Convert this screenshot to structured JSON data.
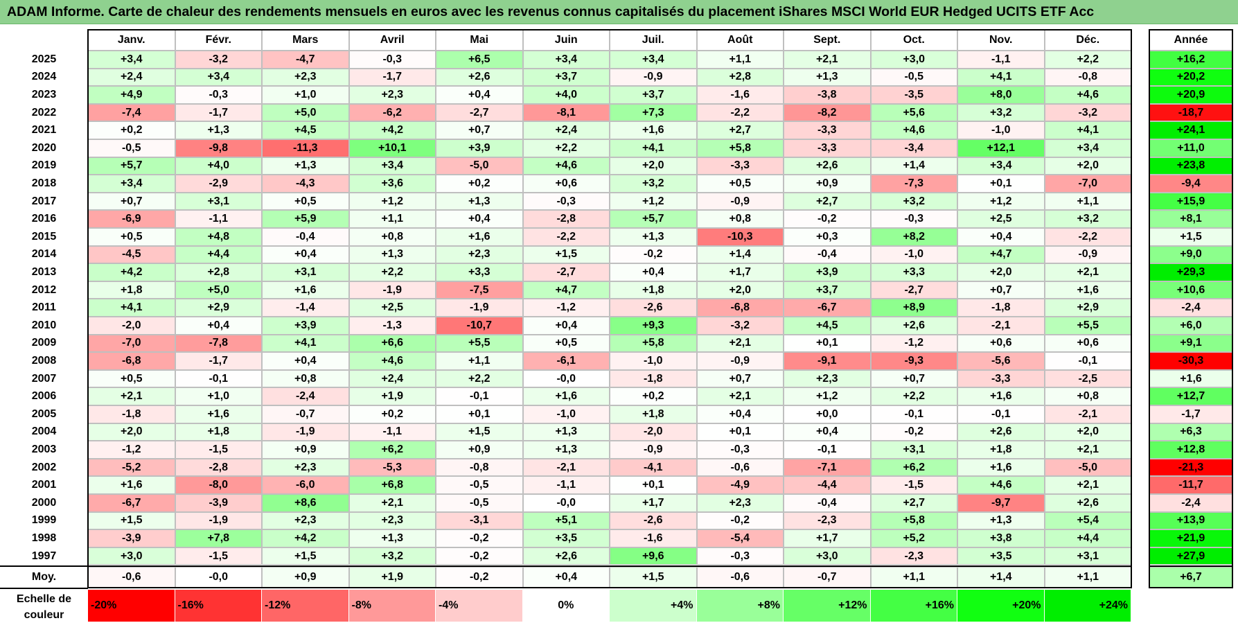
{
  "title": "ADAM Informe. Carte de chaleur des rendements mensuels en euros avec les revenus connus capitalisés du placement iShares MSCI World EUR Hedged UCITS ETF Acc",
  "chart_data": {
    "type": "heatmap",
    "columns": [
      "Janv.",
      "Févr.",
      "Mars",
      "Avril",
      "Mai",
      "Juin",
      "Juil.",
      "Août",
      "Sept.",
      "Oct.",
      "Nov.",
      "Déc."
    ],
    "year_column_label": "Année",
    "rows": [
      {
        "label": "2025",
        "values": [
          "+3,4",
          "-3,2",
          "-4,7",
          "-0,3",
          "+6,5",
          "+3,4",
          "+3,4",
          "+1,1",
          "+2,1",
          "+3,0",
          "-1,1",
          "+2,2"
        ],
        "annual": "+16,2"
      },
      {
        "label": "2024",
        "values": [
          "+2,4",
          "+3,4",
          "+2,3",
          "-1,7",
          "+2,6",
          "+3,7",
          "-0,9",
          "+2,8",
          "+1,3",
          "-0,5",
          "+4,1",
          "-0,8"
        ],
        "annual": "+20,2"
      },
      {
        "label": "2023",
        "values": [
          "+4,9",
          "-0,3",
          "+1,0",
          "+2,3",
          "+0,4",
          "+4,0",
          "+3,7",
          "-1,6",
          "-3,8",
          "-3,5",
          "+8,0",
          "+4,6"
        ],
        "annual": "+20,9"
      },
      {
        "label": "2022",
        "values": [
          "-7,4",
          "-1,7",
          "+5,0",
          "-6,2",
          "-2,7",
          "-8,1",
          "+7,3",
          "-2,2",
          "-8,2",
          "+5,6",
          "+3,2",
          "-3,2"
        ],
        "annual": "-18,7"
      },
      {
        "label": "2021",
        "values": [
          "+0,2",
          "+1,3",
          "+4,5",
          "+4,2",
          "+0,7",
          "+2,4",
          "+1,6",
          "+2,7",
          "-3,3",
          "+4,6",
          "-1,0",
          "+4,1"
        ],
        "annual": "+24,1"
      },
      {
        "label": "2020",
        "values": [
          "-0,5",
          "-9,8",
          "-11,3",
          "+10,1",
          "+3,9",
          "+2,2",
          "+4,1",
          "+5,8",
          "-3,3",
          "-3,4",
          "+12,1",
          "+3,4"
        ],
        "annual": "+11,0"
      },
      {
        "label": "2019",
        "values": [
          "+5,7",
          "+4,0",
          "+1,3",
          "+3,4",
          "-5,0",
          "+4,6",
          "+2,0",
          "-3,3",
          "+2,6",
          "+1,4",
          "+3,4",
          "+2,0"
        ],
        "annual": "+23,8"
      },
      {
        "label": "2018",
        "values": [
          "+3,4",
          "-2,9",
          "-4,3",
          "+3,6",
          "+0,2",
          "+0,6",
          "+3,2",
          "+0,5",
          "+0,9",
          "-7,3",
          "+0,1",
          "-7,0"
        ],
        "annual": "-9,4"
      },
      {
        "label": "2017",
        "values": [
          "+0,7",
          "+3,1",
          "+0,5",
          "+1,2",
          "+1,3",
          "-0,3",
          "+1,2",
          "-0,9",
          "+2,7",
          "+3,2",
          "+1,2",
          "+1,1"
        ],
        "annual": "+15,9"
      },
      {
        "label": "2016",
        "values": [
          "-6,9",
          "-1,1",
          "+5,9",
          "+1,1",
          "+0,4",
          "-2,8",
          "+5,7",
          "+0,8",
          "-0,2",
          "-0,3",
          "+2,5",
          "+3,2"
        ],
        "annual": "+8,1"
      },
      {
        "label": "2015",
        "values": [
          "+0,5",
          "+4,8",
          "-0,4",
          "+0,8",
          "+1,6",
          "-2,2",
          "+1,3",
          "-10,3",
          "+0,3",
          "+8,2",
          "+0,4",
          "-2,2"
        ],
        "annual": "+1,5"
      },
      {
        "label": "2014",
        "values": [
          "-4,5",
          "+4,4",
          "+0,4",
          "+1,3",
          "+2,3",
          "+1,5",
          "-0,2",
          "+1,4",
          "-0,4",
          "-1,0",
          "+4,7",
          "-0,9"
        ],
        "annual": "+9,0"
      },
      {
        "label": "2013",
        "values": [
          "+4,2",
          "+2,8",
          "+3,1",
          "+2,2",
          "+3,3",
          "-2,7",
          "+0,4",
          "+1,7",
          "+3,9",
          "+3,3",
          "+2,0",
          "+2,1"
        ],
        "annual": "+29,3"
      },
      {
        "label": "2012",
        "values": [
          "+1,8",
          "+5,0",
          "+1,6",
          "-1,9",
          "-7,5",
          "+4,7",
          "+1,8",
          "+2,0",
          "+3,7",
          "-2,7",
          "+0,7",
          "+1,6"
        ],
        "annual": "+10,6"
      },
      {
        "label": "2011",
        "values": [
          "+4,1",
          "+2,9",
          "-1,4",
          "+2,5",
          "-1,9",
          "-1,2",
          "-2,6",
          "-6,8",
          "-6,7",
          "+8,9",
          "-1,8",
          "+2,9"
        ],
        "annual": "-2,4"
      },
      {
        "label": "2010",
        "values": [
          "-2,0",
          "+0,4",
          "+3,9",
          "-1,3",
          "-10,7",
          "+0,4",
          "+9,3",
          "-3,2",
          "+4,5",
          "+2,6",
          "-2,1",
          "+5,5"
        ],
        "annual": "+6,0"
      },
      {
        "label": "2009",
        "values": [
          "-7,0",
          "-7,8",
          "+4,1",
          "+6,6",
          "+5,5",
          "+0,5",
          "+5,8",
          "+2,1",
          "+0,1",
          "-1,2",
          "+0,6",
          "+0,6"
        ],
        "annual": "+9,1"
      },
      {
        "label": "2008",
        "values": [
          "-6,8",
          "-1,7",
          "+0,4",
          "+4,6",
          "+1,1",
          "-6,1",
          "-1,0",
          "-0,9",
          "-9,1",
          "-9,3",
          "-5,6",
          "-0,1"
        ],
        "annual": "-30,3"
      },
      {
        "label": "2007",
        "values": [
          "+0,5",
          "-0,1",
          "+0,8",
          "+2,4",
          "+2,2",
          "-0,0",
          "-1,8",
          "+0,7",
          "+2,3",
          "+0,7",
          "-3,3",
          "-2,5"
        ],
        "annual": "+1,6"
      },
      {
        "label": "2006",
        "values": [
          "+2,1",
          "+1,0",
          "-2,4",
          "+1,9",
          "-0,1",
          "+1,6",
          "+0,2",
          "+2,1",
          "+1,2",
          "+2,2",
          "+1,6",
          "+0,8"
        ],
        "annual": "+12,7"
      },
      {
        "label": "2005",
        "values": [
          "-1,8",
          "+1,6",
          "-0,7",
          "+0,2",
          "+0,1",
          "-1,0",
          "+1,8",
          "+0,4",
          "+0,0",
          "-0,1",
          "-0,1",
          "-2,1"
        ],
        "annual": "-1,7"
      },
      {
        "label": "2004",
        "values": [
          "+2,0",
          "+1,8",
          "-1,9",
          "-1,1",
          "+1,5",
          "+1,3",
          "-2,0",
          "+0,1",
          "+0,4",
          "-0,2",
          "+2,6",
          "+2,0"
        ],
        "annual": "+6,3"
      },
      {
        "label": "2003",
        "values": [
          "-1,2",
          "-1,5",
          "+0,9",
          "+6,2",
          "+0,9",
          "+1,3",
          "-0,9",
          "-0,3",
          "-0,1",
          "+3,1",
          "+1,8",
          "+2,1"
        ],
        "annual": "+12,8"
      },
      {
        "label": "2002",
        "values": [
          "-5,2",
          "-2,8",
          "+2,3",
          "-5,3",
          "-0,8",
          "-2,1",
          "-4,1",
          "-0,6",
          "-7,1",
          "+6,2",
          "+1,6",
          "-5,0"
        ],
        "annual": "-21,3"
      },
      {
        "label": "2001",
        "values": [
          "+1,6",
          "-8,0",
          "-6,0",
          "+6,8",
          "-0,5",
          "-1,1",
          "+0,1",
          "-4,9",
          "-4,4",
          "-1,5",
          "+4,6",
          "+2,1"
        ],
        "annual": "-11,7"
      },
      {
        "label": "2000",
        "values": [
          "-6,7",
          "-3,9",
          "+8,6",
          "+2,1",
          "-0,5",
          "-0,0",
          "+1,7",
          "+2,3",
          "-0,4",
          "+2,7",
          "-9,7",
          "+2,6"
        ],
        "annual": "-2,4"
      },
      {
        "label": "1999",
        "values": [
          "+1,5",
          "-1,9",
          "+2,3",
          "+2,3",
          "-3,1",
          "+5,1",
          "-2,6",
          "-0,2",
          "-2,3",
          "+5,8",
          "+1,3",
          "+5,4"
        ],
        "annual": "+13,9"
      },
      {
        "label": "1998",
        "values": [
          "-3,9",
          "+7,8",
          "+4,2",
          "+1,3",
          "-0,2",
          "+3,5",
          "-1,6",
          "-5,4",
          "+1,7",
          "+5,2",
          "+3,8",
          "+4,4"
        ],
        "annual": "+21,9"
      },
      {
        "label": "1997",
        "values": [
          "+3,0",
          "-1,5",
          "+1,5",
          "+3,2",
          "-0,2",
          "+2,6",
          "+9,6",
          "-0,3",
          "+3,0",
          "-2,3",
          "+3,5",
          "+3,1"
        ],
        "annual": "+27,9"
      }
    ],
    "average": {
      "label": "Moy.",
      "values": [
        "-0,6",
        "-0,0",
        "+0,9",
        "+1,9",
        "-0,2",
        "+0,4",
        "+1,5",
        "-0,6",
        "-0,7",
        "+1,1",
        "+1,4",
        "+1,1"
      ],
      "annual": "+6,7"
    },
    "scale": {
      "label_line1": "Echelle de",
      "label_line2": "couleur",
      "stops": [
        {
          "label": "-20%",
          "value": -20,
          "color": "#ff0000"
        },
        {
          "label": "-16%",
          "value": -16,
          "color": "#ff3333"
        },
        {
          "label": "-12%",
          "value": -12,
          "color": "#ff6666"
        },
        {
          "label": "-8%",
          "value": -8,
          "color": "#ff9999"
        },
        {
          "label": "-4%",
          "value": -4,
          "color": "#ffcccc"
        },
        {
          "label": "0%",
          "value": 0,
          "color": "#ffffff"
        },
        {
          "label": "+4%",
          "value": 4,
          "color": "#ccffcc"
        },
        {
          "label": "+8%",
          "value": 8,
          "color": "#99ff99"
        },
        {
          "label": "+12%",
          "value": 12,
          "color": "#66ff66"
        },
        {
          "label": "+16%",
          "value": 16,
          "color": "#44ff44"
        },
        {
          "label": "+20%",
          "value": 20,
          "color": "#11ff11"
        },
        {
          "label": "+24%",
          "value": 24,
          "color": "#00ee00"
        }
      ]
    }
  }
}
